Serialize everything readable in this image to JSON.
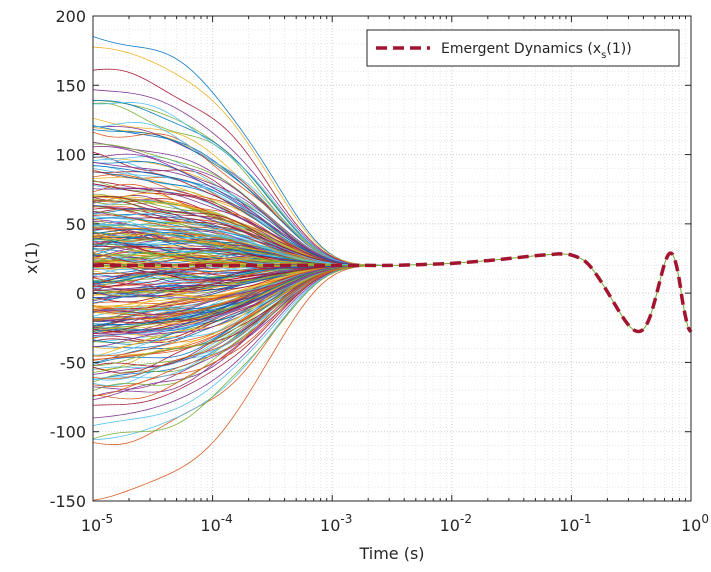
{
  "chart_data": {
    "type": "line",
    "xlabel": "Time (s)",
    "ylabel": "x(1)",
    "xscale": "log",
    "xlim": [
      1e-05,
      1
    ],
    "ylim": [
      -150,
      200
    ],
    "grid": true,
    "minor_grid": true,
    "legend_position": "top-right",
    "x_ticks": [
      {
        "value": 1e-05,
        "base": "10",
        "exp": "-5"
      },
      {
        "value": 0.0001,
        "base": "10",
        "exp": "-4"
      },
      {
        "value": 0.001,
        "base": "10",
        "exp": "-3"
      },
      {
        "value": 0.01,
        "base": "10",
        "exp": "-2"
      },
      {
        "value": 0.1,
        "base": "10",
        "exp": "-1"
      },
      {
        "value": 1,
        "base": "10",
        "exp": "0"
      }
    ],
    "y_ticks": [
      {
        "value": 200,
        "label": "200"
      },
      {
        "value": 150,
        "label": "150"
      },
      {
        "value": 100,
        "label": "100"
      },
      {
        "value": 50,
        "label": "50"
      },
      {
        "value": 0,
        "label": "0"
      },
      {
        "value": -50,
        "label": "-50"
      },
      {
        "value": -100,
        "label": "-100"
      },
      {
        "value": -150,
        "label": "-150"
      }
    ],
    "legend": {
      "prefix": "Emergent Dynamics (x",
      "subscript": "s",
      "suffix": "(1))",
      "color": "#a2142f",
      "style": "dashed"
    },
    "emergent_series": {
      "color": "#a2142f",
      "x": [
        1e-05,
        0.0001,
        0.001,
        0.002,
        0.003,
        0.005,
        0.01,
        0.02,
        0.03,
        0.05,
        0.07,
        0.08,
        0.1,
        0.13,
        0.16,
        0.2,
        0.25,
        0.3,
        0.35,
        0.4,
        0.45,
        0.5,
        0.55,
        0.6,
        0.65,
        0.7,
        0.75,
        0.8,
        0.85,
        0.9,
        0.95,
        1.0
      ],
      "y": [
        20,
        20,
        20,
        20,
        20,
        20.5,
        21.5,
        23.5,
        25,
        27,
        28,
        28.3,
        27.5,
        23,
        14,
        1,
        -13,
        -23,
        -27.5,
        -26,
        -18,
        -5,
        9,
        21,
        28,
        28,
        21,
        9,
        -6,
        -17,
        -25,
        -28
      ]
    },
    "ensemble": {
      "trajectory_count": 300,
      "initial_range": [
        -148,
        186
      ],
      "converged_value": 20,
      "convergence_time": 0.002,
      "colors": [
        "#0072bd",
        "#d95319",
        "#edb120",
        "#7e2f8e",
        "#77ac30",
        "#4dbeee",
        "#a2142f"
      ]
    }
  }
}
